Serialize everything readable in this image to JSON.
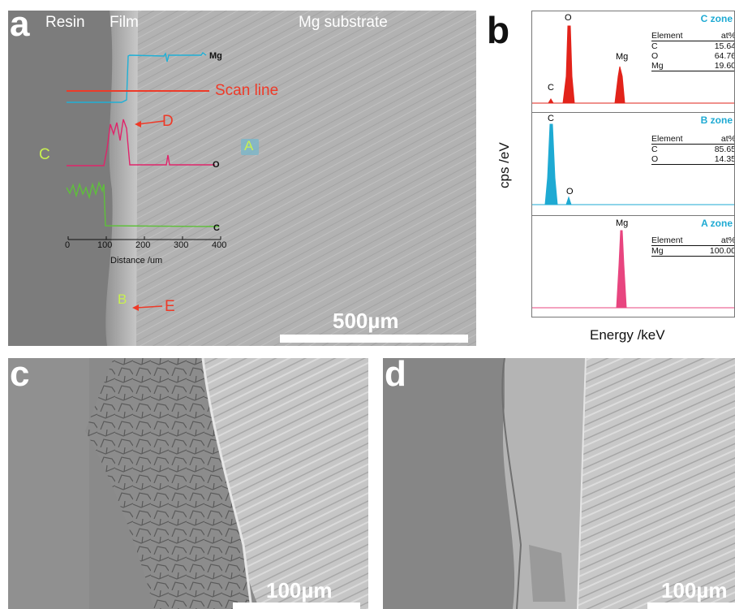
{
  "panel_a": {
    "letter": "a",
    "region_labels": {
      "resin": "Resin",
      "film": "Film",
      "substrate": "Mg substrate"
    },
    "scan_line_label": "Scan line",
    "point_labels": {
      "a": "A",
      "b": "B",
      "c": "C",
      "d": "D",
      "e": "E"
    },
    "profile_labels": {
      "mg": "Mg",
      "o": "O",
      "c": "C"
    },
    "axis": {
      "ticks": [
        "0",
        "100",
        "200",
        "300",
        "400"
      ],
      "xlabel": "Distance /um"
    },
    "scale_bar": "500µm",
    "colors": {
      "mg": "#1fb0d6",
      "o": "#e0246a",
      "c": "#5ec03a",
      "scan": "#ee3a28",
      "point": "#c8f050"
    }
  },
  "panel_b": {
    "letter": "b",
    "ylabel": "cps /eV",
    "xlabel": "Energy /keV",
    "spectra": [
      {
        "zone": "C zone",
        "color": "#e2231a",
        "peak_labels": [
          "C",
          "O",
          "Mg"
        ],
        "table_header": [
          "Element",
          "at%"
        ],
        "table_rows": [
          [
            "C",
            "15.64"
          ],
          [
            "O",
            "64.76"
          ],
          [
            "Mg",
            "19.60"
          ]
        ]
      },
      {
        "zone": "B zone",
        "color": "#1eaad3",
        "peak_labels": [
          "C",
          "O"
        ],
        "table_header": [
          "Element",
          "at%"
        ],
        "table_rows": [
          [
            "C",
            "85.65"
          ],
          [
            "O",
            "14.35"
          ]
        ]
      },
      {
        "zone": "A zone",
        "color": "#e8457f",
        "peak_labels": [
          "Mg"
        ],
        "table_header": [
          "Element",
          "at%"
        ],
        "table_rows": [
          [
            "Mg",
            "100.00"
          ]
        ]
      }
    ]
  },
  "panel_c": {
    "letter": "c",
    "scale_bar": "100µm"
  },
  "panel_d": {
    "letter": "d",
    "scale_bar": "100µm"
  }
}
